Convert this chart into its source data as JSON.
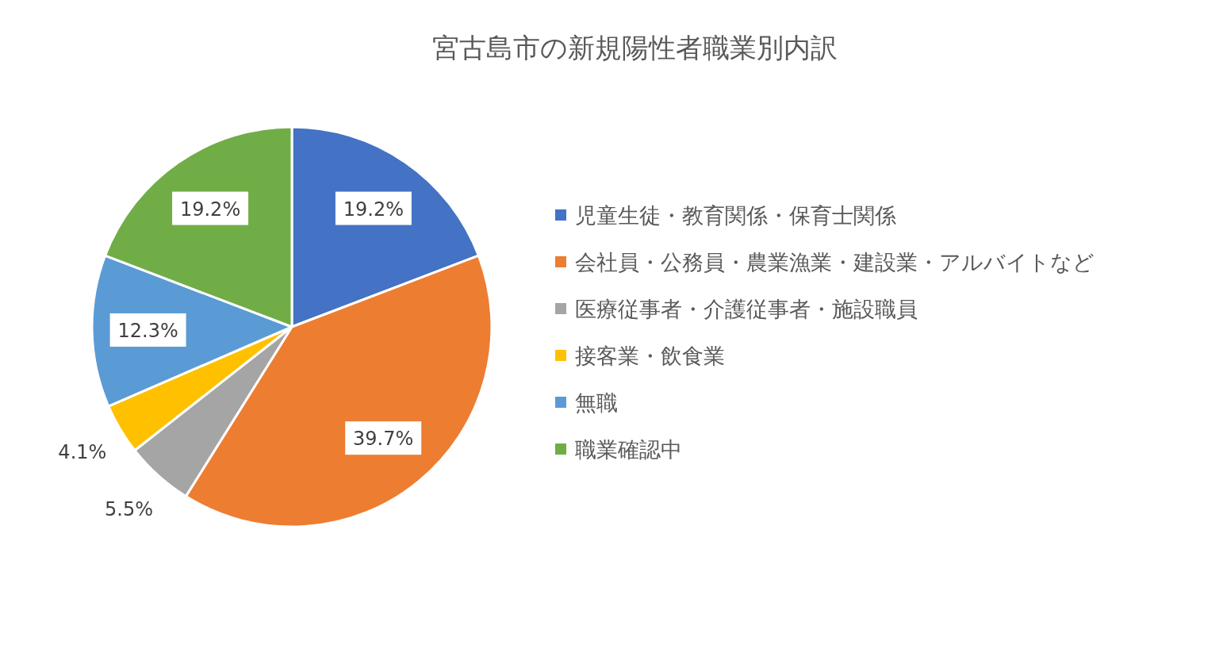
{
  "chart_data": {
    "type": "pie",
    "title": "宮古島市の新規陽性者職業別内訳",
    "categories": [
      "児童生徒・教育関係・保育士関係",
      "会社員・公務員・農業漁業・建設業・アルバイトなど",
      "医療従事者・介護従事者・施設職員",
      "接客業・飲食業",
      "無職",
      "職業確認中"
    ],
    "values": [
      19.2,
      39.7,
      5.5,
      4.1,
      12.3,
      19.2
    ],
    "colors": [
      "#4472c4",
      "#ed7d31",
      "#a5a5a5",
      "#ffc000",
      "#5b9bd5",
      "#70ad47"
    ],
    "value_labels": [
      "19.2%",
      "39.7%",
      "5.5%",
      "4.1%",
      "12.3%",
      "19.2%"
    ],
    "legend": "right"
  }
}
